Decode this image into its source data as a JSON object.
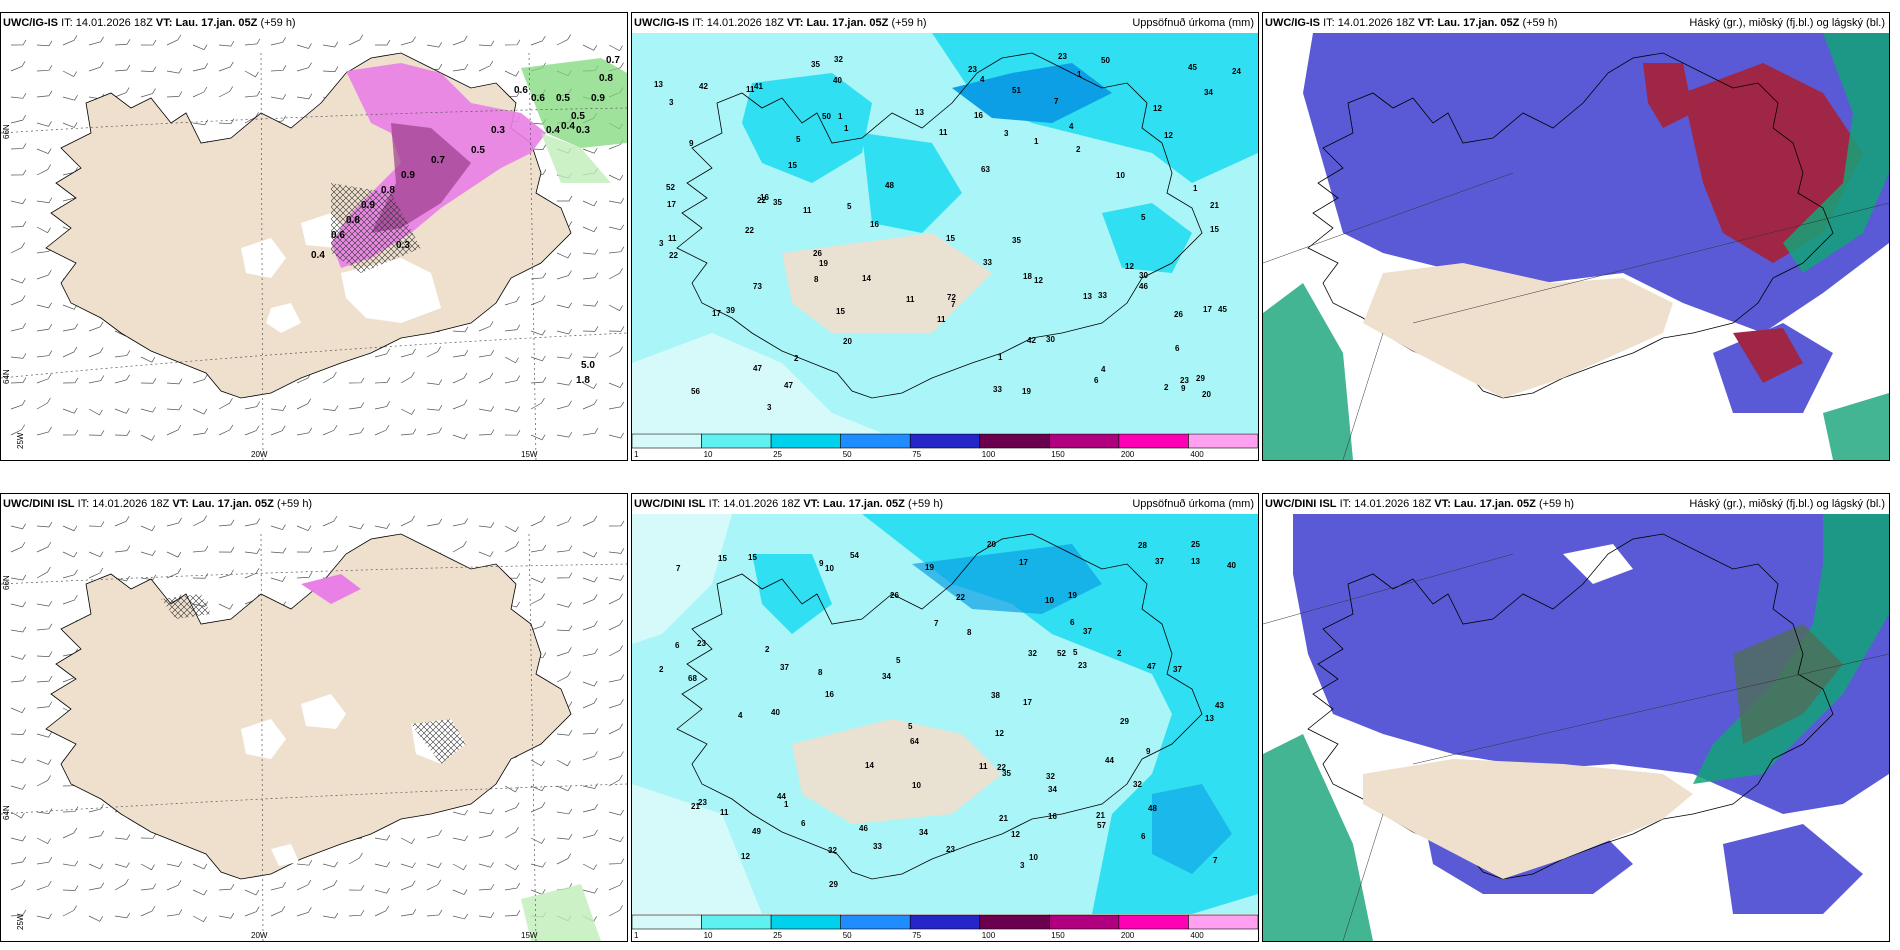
{
  "panels": [
    {
      "model": "UWC/IG-IS",
      "it_label": "IT:",
      "it": "14.01.2026 18Z",
      "vt_label": "VT:",
      "vt": "Lau. 17.jan. 05Z",
      "lead": "(+59 h)",
      "right_title": ""
    },
    {
      "model": "UWC/IG-IS",
      "it_label": "IT:",
      "it": "14.01.2026 18Z",
      "vt_label": "VT:",
      "vt": "Lau. 17.jan. 05Z",
      "lead": "(+59 h)",
      "right_title": "Uppsöfnuð úrkoma (mm)"
    },
    {
      "model": "UWC/IG-IS",
      "it_label": "IT:",
      "it": "14.01.2026 18Z",
      "vt_label": "VT:",
      "vt": "Lau. 17.jan. 05Z",
      "lead": "(+59 h)",
      "right_title": "Háský (gr.), miðský (fj.bl.) og lágský (bl.)"
    },
    {
      "model": "UWC/DINI ISL",
      "it_label": "IT:",
      "it": "14.01.2026 18Z",
      "vt_label": "VT:",
      "vt": "Lau. 17.jan. 05Z",
      "lead": "(+59 h)",
      "right_title": ""
    },
    {
      "model": "UWC/DINI ISL",
      "it_label": "IT:",
      "it": "14.01.2026 18Z",
      "vt_label": "VT:",
      "vt": "Lau. 17.jan. 05Z",
      "lead": "(+59 h)",
      "right_title": "Uppsöfnuð úrkoma (mm)"
    },
    {
      "model": "UWC/DINI ISL",
      "it_label": "IT:",
      "it": "14.01.2026 18Z",
      "vt_label": "VT:",
      "vt": "Lau. 17.jan. 05Z",
      "lead": "(+59 h)",
      "right_title": "Háský (gr.), miðský (fj.bl.) og lágský (bl.)"
    }
  ],
  "grid_labels": {
    "lat66": "66N",
    "lat64": "64N",
    "lon25": "25W",
    "lon20": "20W",
    "lon15": "15W"
  },
  "colorbar": {
    "labels": [
      "1",
      "10",
      "25",
      "50",
      "75",
      "100",
      "150",
      "200",
      "400"
    ],
    "colors": [
      "#d6fafa",
      "#5ff0f0",
      "#00d2ee",
      "#1f8cff",
      "#2525c8",
      "#6b004f",
      "#b0007f",
      "#ff00b4",
      "#ffa0f0"
    ]
  },
  "colors": {
    "land": "#efe0ce",
    "precip_light": "#aaf5f7",
    "precip_mid": "#31dff2",
    "precip_heavy": "#0c9fe6",
    "cloud_low": "#5a5ad7",
    "cloud_high": "#14a378",
    "cloud_mid": "#a02645",
    "snow": "#e880e6"
  },
  "top_precip_numbers": [
    "1",
    "1",
    "1",
    "21",
    "16",
    "17",
    "14",
    "23",
    "26",
    "12",
    "15",
    "30",
    "10",
    "15",
    "17",
    "15",
    "26",
    "52",
    "32",
    "13",
    "29",
    "16",
    "47",
    "73",
    "63",
    "50",
    "56",
    "30",
    "33",
    "34",
    "47",
    "20",
    "22",
    "23",
    "16",
    "17",
    "15",
    "18",
    "12",
    "12",
    "19",
    "9",
    "11",
    "7",
    "6",
    "11",
    "3",
    "2",
    "1",
    "2",
    "2",
    "5",
    "6",
    "7",
    "8",
    "11",
    "11",
    "13",
    "33",
    "35",
    "45",
    "45",
    "48",
    "40",
    "50",
    "41",
    "42",
    "35",
    "35",
    "51",
    "13",
    "11",
    "11",
    "3",
    "4",
    "5",
    "4",
    "5",
    "22",
    "24",
    "33",
    "39",
    "42",
    "19",
    "72",
    "46",
    "20",
    "12",
    "9",
    "22",
    "23",
    "3",
    "4",
    "1",
    "3",
    "1"
  ],
  "bottom_precip_numbers": [
    "10",
    "10",
    "1",
    "2",
    "2",
    "12",
    "13",
    "16",
    "64",
    "6",
    "11",
    "6",
    "5",
    "22",
    "23",
    "28",
    "68",
    "37",
    "44",
    "47",
    "21",
    "35",
    "32",
    "57",
    "17",
    "37",
    "40",
    "37",
    "23",
    "26",
    "34",
    "25",
    "19",
    "46",
    "54",
    "34",
    "20",
    "23",
    "43",
    "32",
    "19",
    "38",
    "40",
    "48",
    "17",
    "9",
    "11",
    "10",
    "12",
    "13",
    "14",
    "8",
    "8",
    "6",
    "7",
    "7",
    "6",
    "5",
    "29",
    "21",
    "2",
    "3",
    "5",
    "4",
    "9",
    "12",
    "15",
    "21",
    "16",
    "34",
    "37",
    "32",
    "49",
    "22",
    "33",
    "32",
    "29",
    "44",
    "52",
    "23",
    "7",
    "15",
    "10"
  ],
  "wind_labels_top": [
    "0.7",
    "0.8",
    "0.9",
    "0.6",
    "0.6",
    "0.5",
    "0.5",
    "0.4",
    "0.4",
    "0.3",
    "0.3",
    "0.5",
    "0.7",
    "0.9",
    "0.8",
    "0.9",
    "0.8",
    "0.6",
    "0.4",
    "0.3",
    "5.0",
    "1.8"
  ]
}
